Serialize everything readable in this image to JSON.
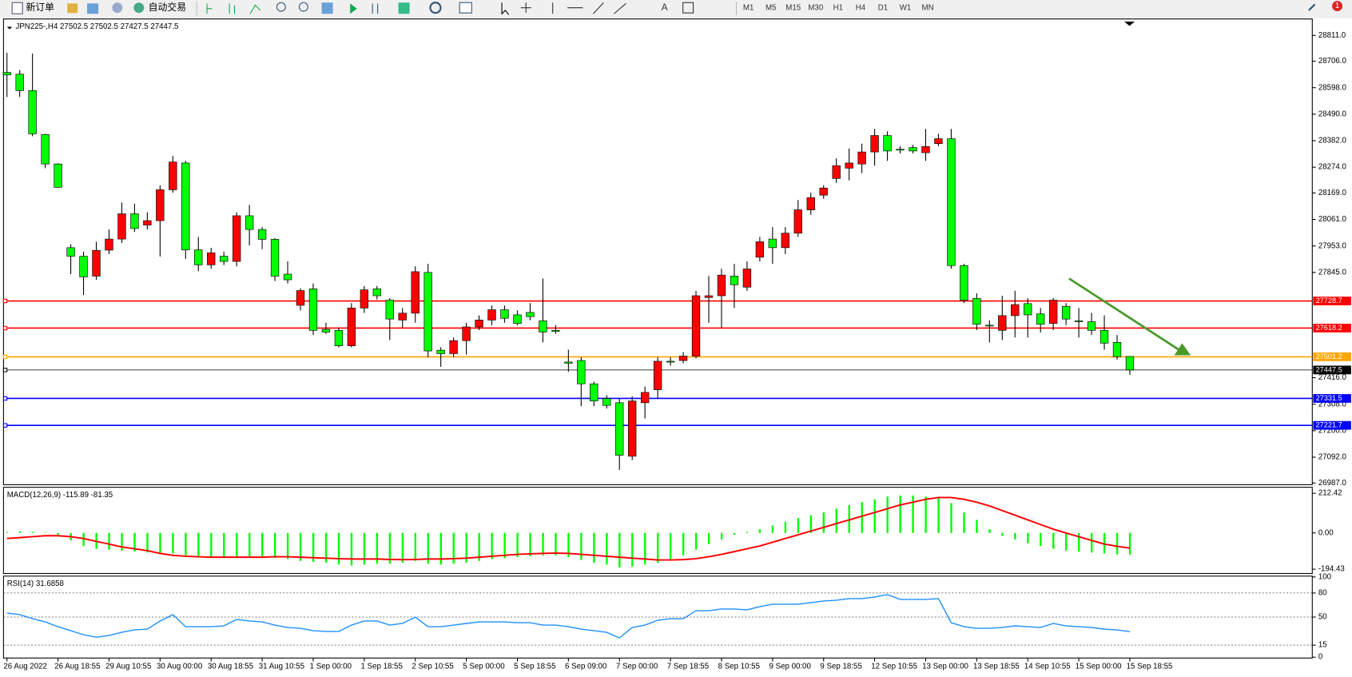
{
  "toolbar": {
    "new_order": "新订单",
    "auto_trading": "自动交易",
    "timeframes": [
      "M1",
      "M5",
      "M15",
      "M30",
      "H1",
      "H4",
      "D1",
      "W1",
      "MN"
    ],
    "badge": "1"
  },
  "chart_data": [
    {
      "type": "candlestick",
      "title": "JPN225-,H4  27502.5 27502.5 27427.5 27447.5",
      "categories": [
        "26 Aug 2022",
        null,
        null,
        null,
        "26 Aug 18:55",
        null,
        null,
        null,
        "29 Aug 10:55",
        null,
        null,
        null,
        "30 Aug 00:00",
        null,
        null,
        null,
        "30 Aug 18:55",
        null,
        null,
        null,
        "31 Aug 10:55",
        null,
        null,
        null,
        "1 Sep 00:00",
        null,
        null,
        null,
        "1 Sep 18:55",
        null,
        null,
        null,
        "2 Sep 10:55",
        null,
        null,
        null,
        "5 Sep 00:00",
        null,
        null,
        null,
        "5 Sep 18:55",
        null,
        null,
        null,
        "6 Sep 09:00",
        null,
        null,
        null,
        "7 Sep 00:00",
        null,
        null,
        null,
        "7 Sep 18:55",
        null,
        null,
        null,
        "8 Sep 10:55",
        null,
        null,
        null,
        "9 Sep 00:00",
        null,
        null,
        null,
        "9 Sep 18:55",
        null,
        null,
        null,
        "12 Sep 10:55",
        null,
        null,
        null,
        "13 Sep 00:00",
        null,
        null,
        null,
        "13 Sep 18:55",
        null,
        null,
        null,
        "14 Sep 10:55",
        null,
        null,
        null,
        "15 Sep 00:00",
        null,
        null,
        null,
        "15 Sep 18:55"
      ],
      "open": [
        28660,
        28653,
        28586,
        28407,
        28287,
        27946,
        27911,
        27830,
        27936,
        27981,
        28084,
        28038,
        28056,
        28182,
        28291,
        27937,
        27876,
        27911,
        27890,
        28076,
        28020,
        27980,
        27838,
        27711,
        27778,
        27613,
        27609,
        27546,
        27700,
        27778,
        27732,
        27651,
        27679,
        27845,
        27528,
        27514,
        27567,
        27623,
        27651,
        27693,
        27672,
        27682,
        27648,
        27609,
        27480,
        27486,
        27391,
        27331,
        27314,
        27096,
        27314,
        27367,
        27483,
        27486,
        27504,
        27743,
        27750,
        27830,
        27785,
        27907,
        27981,
        27946,
        28005,
        28100,
        28160,
        28228,
        28270,
        28287,
        28336,
        28403,
        28347,
        28354,
        28333,
        28370,
        28390,
        27873,
        27739,
        27630,
        27609,
        27669,
        27718,
        27676,
        27637,
        27707,
        27648,
        27644,
        27609,
        27560,
        27502.5
      ],
      "high": [
        28740,
        28670,
        28737,
        28410,
        28290,
        27960,
        27930,
        27970,
        28020,
        28130,
        28125,
        28090,
        28200,
        28320,
        28300,
        27990,
        27945,
        27930,
        28090,
        28120,
        28030,
        27985,
        27890,
        27780,
        27800,
        27640,
        27620,
        27720,
        27790,
        27790,
        27740,
        27700,
        27870,
        27880,
        27540,
        27580,
        27640,
        27670,
        27710,
        27710,
        27690,
        27720,
        27820,
        27630,
        27530,
        27500,
        27400,
        27345,
        27330,
        27340,
        27380,
        27500,
        27500,
        27520,
        27770,
        27830,
        27860,
        27880,
        27890,
        27990,
        28030,
        28030,
        28140,
        28170,
        28200,
        28310,
        28350,
        28370,
        28430,
        28420,
        28360,
        28365,
        28430,
        28410,
        28430,
        27880,
        27760,
        27650,
        27750,
        27770,
        27740,
        27700,
        27740,
        27720,
        27700,
        27680,
        27670,
        27590,
        27502.5
      ],
      "low": [
        28560,
        28560,
        28400,
        28270,
        28190,
        27838,
        27753,
        27815,
        27920,
        27965,
        28010,
        28020,
        27910,
        28170,
        27900,
        27850,
        27860,
        27875,
        27870,
        27955,
        27940,
        27810,
        27800,
        27690,
        27590,
        27595,
        27540,
        27540,
        27680,
        27735,
        27570,
        27620,
        27640,
        27500,
        27460,
        27500,
        27510,
        27610,
        27630,
        27640,
        27630,
        27650,
        27560,
        27595,
        27440,
        27300,
        27300,
        27290,
        27040,
        27080,
        27250,
        27330,
        27465,
        27475,
        27495,
        27640,
        27620,
        27700,
        27770,
        27890,
        27880,
        27920,
        27990,
        28080,
        28145,
        28210,
        28220,
        28250,
        28280,
        28300,
        28330,
        28330,
        28300,
        28360,
        27860,
        27720,
        27610,
        27560,
        27570,
        27580,
        27580,
        27600,
        27610,
        27630,
        27580,
        27590,
        27530,
        27490,
        27427.5
      ],
      "close": [
        28650,
        28586,
        28410,
        28287,
        28192,
        27911,
        27827,
        27935,
        27981,
        28084,
        28024,
        28056,
        28182,
        28295,
        27937,
        27876,
        27925,
        27890,
        28076,
        28020,
        27980,
        27830,
        27815,
        27771,
        27609,
        27602,
        27546,
        27700,
        27774,
        27750,
        27655,
        27679,
        27848,
        27525,
        27514,
        27567,
        27623,
        27651,
        27693,
        27658,
        27637,
        27665,
        27602,
        27605,
        27475,
        27391,
        27321,
        27303,
        27100,
        27321,
        27356,
        27483,
        27480,
        27504,
        27750,
        27750,
        27834,
        27795,
        27859,
        27970,
        27946,
        28005,
        28100,
        28150,
        28189,
        28280,
        28291,
        28336,
        28403,
        28340,
        28345,
        28340,
        28358,
        28390,
        27873,
        27732,
        27634,
        27627,
        27669,
        27714,
        27672,
        27634,
        27732,
        27655,
        27645,
        27609,
        27557,
        27502,
        27447.5
      ],
      "up_color": "#ff0000",
      "down_color": "#00ff00",
      "ylim": [
        26980,
        28878
      ],
      "yticks": [
        {
          "value": 28811,
          "label": "28811.0"
        },
        {
          "value": 28706,
          "label": "28706.0"
        },
        {
          "value": 28598,
          "label": "28598.0"
        },
        {
          "value": 28490,
          "label": "28490.0"
        },
        {
          "value": 28382,
          "label": "28382.0"
        },
        {
          "value": 28274,
          "label": "28274.0"
        },
        {
          "value": 28169,
          "label": "28169.0"
        },
        {
          "value": 28061,
          "label": "28061.0"
        },
        {
          "value": 27953,
          "label": "27953.0"
        },
        {
          "value": 27845,
          "label": "27845.0"
        },
        {
          "value": 27416,
          "label": "27416.0"
        },
        {
          "value": 27308,
          "label": "27308.0"
        },
        {
          "value": 27200,
          "label": "27200.0"
        },
        {
          "value": 27092,
          "label": "27092.0"
        },
        {
          "value": 26987,
          "label": "26987.0"
        }
      ],
      "hlines": [
        {
          "value": 27728.7,
          "color": "#ff0000"
        },
        {
          "value": 27618.2,
          "color": "#ff0000"
        },
        {
          "value": 27501.2,
          "color": "#ffa500"
        },
        {
          "value": 27447.5,
          "color": "#000000"
        },
        {
          "value": 27331.5,
          "color": "#0000ff"
        },
        {
          "value": 27221.7,
          "color": "#0000ff"
        }
      ]
    },
    {
      "type": "bar_line",
      "title": "MACD(12,26,9) -115.89 -81.35",
      "series": [
        {
          "kind": "bar",
          "color": "#00ff00",
          "values": [
            5,
            8,
            6,
            2,
            -10,
            -40,
            -70,
            -85,
            -90,
            -95,
            -100,
            -105,
            -110,
            -110,
            -120,
            -130,
            -130,
            -135,
            -130,
            -125,
            -125,
            -135,
            -140,
            -150,
            -155,
            -160,
            -170,
            -175,
            -170,
            -165,
            -165,
            -160,
            -150,
            -165,
            -170,
            -165,
            -160,
            -150,
            -140,
            -135,
            -130,
            -125,
            -120,
            -120,
            -130,
            -145,
            -160,
            -170,
            -185,
            -180,
            -170,
            -160,
            -140,
            -120,
            -90,
            -60,
            -35,
            -10,
            5,
            20,
            40,
            60,
            80,
            95,
            110,
            130,
            150,
            165,
            180,
            195,
            200,
            200,
            195,
            190,
            160,
            110,
            70,
            20,
            -15,
            -35,
            -55,
            -70,
            -85,
            -95,
            -100,
            -105,
            -110,
            -115,
            -115.89
          ]
        },
        {
          "kind": "line",
          "color": "#ff0000",
          "values": [
            -30,
            -25,
            -20,
            -15,
            -15,
            -20,
            -30,
            -45,
            -60,
            -75,
            -85,
            -95,
            -110,
            -120,
            -125,
            -128,
            -130,
            -130,
            -130,
            -130,
            -130,
            -128,
            -128,
            -130,
            -133,
            -135,
            -138,
            -140,
            -140,
            -140,
            -142,
            -143,
            -142,
            -140,
            -140,
            -138,
            -135,
            -130,
            -125,
            -120,
            -115,
            -112,
            -110,
            -108,
            -110,
            -115,
            -120,
            -125,
            -130,
            -135,
            -140,
            -145,
            -145,
            -143,
            -138,
            -128,
            -115,
            -100,
            -85,
            -70,
            -50,
            -30,
            -10,
            10,
            30,
            50,
            70,
            90,
            110,
            130,
            150,
            165,
            180,
            190,
            190,
            180,
            165,
            145,
            120,
            95,
            70,
            45,
            20,
            0,
            -20,
            -40,
            -60,
            -72,
            -81.35
          ]
        }
      ],
      "ylim": [
        -217.5,
        244.8
      ],
      "yticks": [
        {
          "value": 212.42,
          "label": "212.42"
        },
        {
          "value": 0,
          "label": "0.00"
        },
        {
          "value": -194.43,
          "label": "-194.43"
        }
      ]
    },
    {
      "type": "line",
      "title": "RSI(14) 31.6858",
      "series": [
        {
          "color": "#1e90ff",
          "values": [
            55,
            53,
            48,
            44,
            38,
            33,
            28,
            25,
            27,
            31,
            34,
            35,
            45,
            53,
            38,
            38,
            38,
            39,
            47,
            45,
            44,
            40,
            37,
            36,
            33,
            32,
            32,
            40,
            45,
            45,
            40,
            42,
            50,
            38,
            38,
            40,
            42,
            44,
            44,
            44,
            43,
            43,
            40,
            40,
            38,
            35,
            33,
            31,
            24,
            37,
            40,
            46,
            48,
            48,
            58,
            58,
            60,
            60,
            59,
            63,
            66,
            66,
            66,
            68,
            70,
            71,
            73,
            73,
            75,
            78,
            72,
            72,
            72,
            73,
            43,
            38,
            36,
            36,
            37,
            39,
            38,
            37,
            42,
            39,
            38,
            37,
            35,
            34,
            31.6858
          ]
        }
      ],
      "ylim": [
        0,
        100
      ],
      "yticks": [
        100,
        80,
        50,
        15,
        0
      ],
      "levels": [
        80,
        50,
        15
      ]
    }
  ]
}
